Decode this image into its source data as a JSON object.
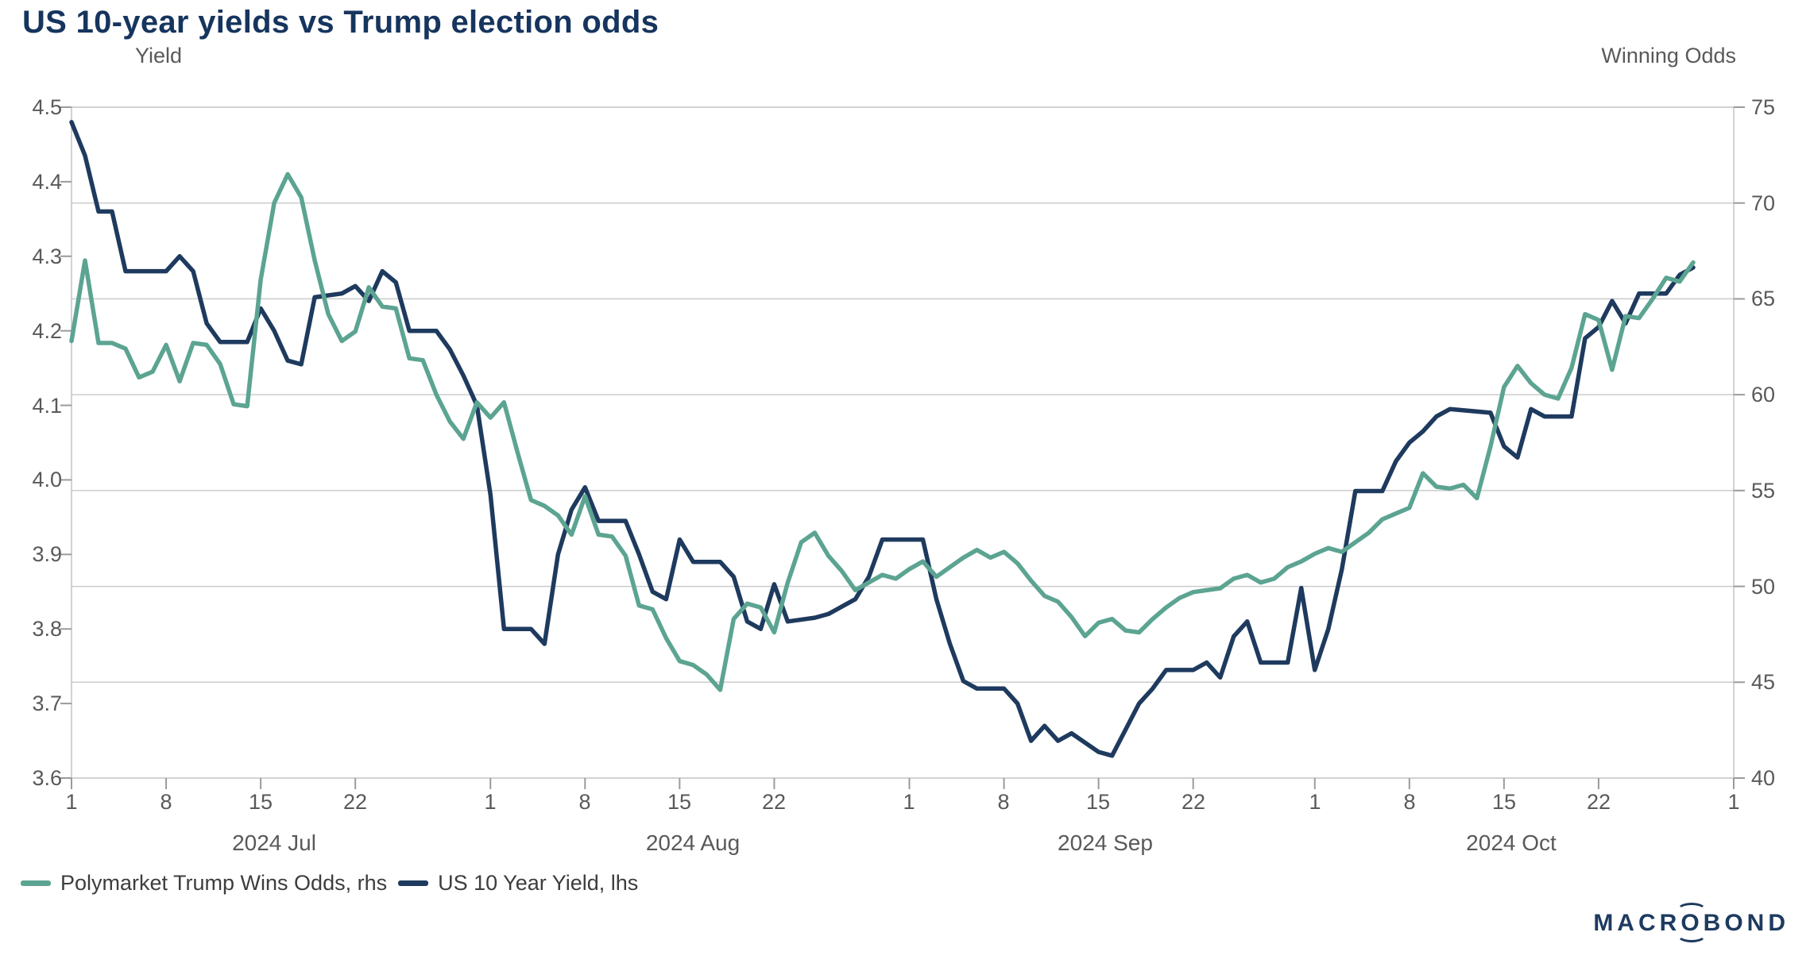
{
  "page": {
    "title": "US 10-year yields vs Trump election odds"
  },
  "colors": {
    "navy": "#1e3a5e",
    "teal": "#5ca492",
    "title_text": "#16355e",
    "axis_text": "#595959",
    "grid": "#cccccc",
    "border": "#c4c4c4",
    "tick": "#9b9b9b",
    "legend_text": "#3d3d3d",
    "logo": "#1e3a5f"
  },
  "legend": {
    "items": [
      {
        "label": "Polymarket Trump Wins Odds, rhs",
        "color": "#5ca492"
      },
      {
        "label": "US 10 Year Yield, lhs",
        "color": "#1e3a5e"
      }
    ]
  },
  "footer": {
    "logo_pre": "MACR",
    "logo_o": "O",
    "logo_post": "BOND"
  },
  "chart_data": {
    "type": "line",
    "title": "US 10-year yields vs Trump election odds",
    "grid": "horizontal-only",
    "legend_position": "bottom-left",
    "x_axis": {
      "unit": "date",
      "start": "2024-07-01",
      "end": "2024-11-01",
      "total_days": 123,
      "tick_days": [
        0,
        7,
        14,
        21,
        31,
        38,
        45,
        52,
        62,
        69,
        76,
        83,
        92,
        99,
        106,
        113,
        123
      ],
      "tick_labels": [
        "1",
        "8",
        "15",
        "22",
        "1",
        "8",
        "15",
        "22",
        "1",
        "8",
        "15",
        "22",
        "1",
        "8",
        "15",
        "22",
        "1"
      ],
      "month_labels": [
        "2024 Jul",
        "2024 Aug",
        "2024 Sep",
        "2024 Oct"
      ]
    },
    "left_axis": {
      "title": "Yield",
      "min": 3.6,
      "max": 4.5,
      "tick_values": [
        4.5,
        4.4,
        4.3,
        4.2,
        4.1,
        4.0,
        3.9,
        3.8,
        3.7,
        3.6
      ],
      "ticks": [
        "4.5",
        "4.4",
        "4.3",
        "4.2",
        "4.1",
        "4.0",
        "3.9",
        "3.8",
        "3.7",
        "3.6"
      ]
    },
    "right_axis": {
      "title": "Winning Odds",
      "min": 40,
      "max": 75,
      "tick_values": [
        75,
        70,
        65,
        60,
        55,
        50,
        45,
        40
      ],
      "grid_values": [
        70,
        65,
        60,
        55,
        50,
        45
      ],
      "ticks": [
        "75",
        "70",
        "65",
        "60",
        "55",
        "50",
        "45",
        "40"
      ]
    },
    "series": [
      {
        "name": "US 10 Year Yield, lhs",
        "axis": "left",
        "color": "#1e3a5e",
        "points": [
          [
            0,
            4.48
          ],
          [
            1,
            4.435
          ],
          [
            2,
            4.36
          ],
          [
            3,
            4.36
          ],
          [
            4,
            4.28
          ],
          [
            7,
            4.28
          ],
          [
            8,
            4.3
          ],
          [
            9,
            4.28
          ],
          [
            10,
            4.21
          ],
          [
            11,
            4.185
          ],
          [
            13,
            4.185
          ],
          [
            14,
            4.23
          ],
          [
            15,
            4.2
          ],
          [
            16,
            4.16
          ],
          [
            17,
            4.155
          ],
          [
            18,
            4.245
          ],
          [
            20,
            4.25
          ],
          [
            21,
            4.26
          ],
          [
            22,
            4.24
          ],
          [
            23,
            4.28
          ],
          [
            24,
            4.265
          ],
          [
            25,
            4.2
          ],
          [
            27,
            4.2
          ],
          [
            28,
            4.175
          ],
          [
            29,
            4.14
          ],
          [
            30,
            4.1
          ],
          [
            31,
            3.98
          ],
          [
            32,
            3.8
          ],
          [
            34,
            3.8
          ],
          [
            35,
            3.78
          ],
          [
            36,
            3.9
          ],
          [
            37,
            3.96
          ],
          [
            38,
            3.99
          ],
          [
            39,
            3.945
          ],
          [
            41,
            3.945
          ],
          [
            42,
            3.9
          ],
          [
            43,
            3.85
          ],
          [
            44,
            3.84
          ],
          [
            45,
            3.92
          ],
          [
            46,
            3.89
          ],
          [
            48,
            3.89
          ],
          [
            49,
            3.87
          ],
          [
            50,
            3.81
          ],
          [
            51,
            3.8
          ],
          [
            52,
            3.86
          ],
          [
            53,
            3.81
          ],
          [
            55,
            3.815
          ],
          [
            56,
            3.82
          ],
          [
            57,
            3.83
          ],
          [
            58,
            3.84
          ],
          [
            59,
            3.87
          ],
          [
            60,
            3.92
          ],
          [
            63,
            3.92
          ],
          [
            64,
            3.84
          ],
          [
            65,
            3.78
          ],
          [
            66,
            3.73
          ],
          [
            67,
            3.72
          ],
          [
            69,
            3.72
          ],
          [
            70,
            3.7
          ],
          [
            71,
            3.65
          ],
          [
            72,
            3.67
          ],
          [
            73,
            3.65
          ],
          [
            74,
            3.66
          ],
          [
            76,
            3.635
          ],
          [
            77,
            3.63
          ],
          [
            78,
            3.665
          ],
          [
            79,
            3.7
          ],
          [
            80,
            3.72
          ],
          [
            81,
            3.745
          ],
          [
            83,
            3.745
          ],
          [
            84,
            3.755
          ],
          [
            85,
            3.735
          ],
          [
            86,
            3.79
          ],
          [
            87,
            3.81
          ],
          [
            88,
            3.755
          ],
          [
            90,
            3.755
          ],
          [
            91,
            3.855
          ],
          [
            92,
            3.745
          ],
          [
            93,
            3.8
          ],
          [
            94,
            3.88
          ],
          [
            95,
            3.985
          ],
          [
            97,
            3.985
          ],
          [
            98,
            4.025
          ],
          [
            99,
            4.05
          ],
          [
            100,
            4.065
          ],
          [
            101,
            4.085
          ],
          [
            102,
            4.095
          ],
          [
            105,
            4.09
          ],
          [
            106,
            4.045
          ],
          [
            107,
            4.03
          ],
          [
            108,
            4.095
          ],
          [
            109,
            4.085
          ],
          [
            111,
            4.085
          ],
          [
            112,
            4.19
          ],
          [
            113,
            4.205
          ],
          [
            114,
            4.24
          ],
          [
            115,
            4.21
          ],
          [
            116,
            4.25
          ],
          [
            118,
            4.25
          ],
          [
            119,
            4.275
          ],
          [
            120,
            4.285
          ]
        ]
      },
      {
        "name": "Polymarket Trump Wins Odds, rhs",
        "axis": "right",
        "color": "#5ca492",
        "points": [
          [
            0,
            62.8
          ],
          [
            1,
            67.0
          ],
          [
            2,
            62.7
          ],
          [
            3,
            62.7
          ],
          [
            4,
            62.4
          ],
          [
            5,
            60.9
          ],
          [
            6,
            61.2
          ],
          [
            7,
            62.6
          ],
          [
            8,
            60.7
          ],
          [
            9,
            62.7
          ],
          [
            10,
            62.6
          ],
          [
            11,
            61.6
          ],
          [
            12,
            59.5
          ],
          [
            13,
            59.4
          ],
          [
            14,
            66.0
          ],
          [
            15,
            70.0
          ],
          [
            16,
            71.5
          ],
          [
            17,
            70.3
          ],
          [
            18,
            67.0
          ],
          [
            19,
            64.2
          ],
          [
            20,
            62.8
          ],
          [
            21,
            63.3
          ],
          [
            22,
            65.6
          ],
          [
            23,
            64.6
          ],
          [
            24,
            64.5
          ],
          [
            25,
            61.9
          ],
          [
            26,
            61.8
          ],
          [
            27,
            60.0
          ],
          [
            28,
            58.6
          ],
          [
            29,
            57.7
          ],
          [
            30,
            59.6
          ],
          [
            31,
            58.8
          ],
          [
            32,
            59.6
          ],
          [
            33,
            57.0
          ],
          [
            34,
            54.5
          ],
          [
            35,
            54.2
          ],
          [
            36,
            53.7
          ],
          [
            37,
            52.7
          ],
          [
            38,
            54.7
          ],
          [
            39,
            52.7
          ],
          [
            40,
            52.6
          ],
          [
            41,
            51.6
          ],
          [
            42,
            49.0
          ],
          [
            43,
            48.8
          ],
          [
            44,
            47.3
          ],
          [
            45,
            46.1
          ],
          [
            46,
            45.9
          ],
          [
            47,
            45.4
          ],
          [
            48,
            44.6
          ],
          [
            49,
            48.3
          ],
          [
            50,
            49.1
          ],
          [
            51,
            48.9
          ],
          [
            52,
            47.6
          ],
          [
            53,
            50.2
          ],
          [
            54,
            52.3
          ],
          [
            55,
            52.8
          ],
          [
            56,
            51.6
          ],
          [
            57,
            50.8
          ],
          [
            58,
            49.8
          ],
          [
            59,
            50.2
          ],
          [
            60,
            50.6
          ],
          [
            61,
            50.4
          ],
          [
            62,
            50.9
          ],
          [
            63,
            51.3
          ],
          [
            64,
            50.5
          ],
          [
            65,
            51.0
          ],
          [
            66,
            51.5
          ],
          [
            67,
            51.9
          ],
          [
            68,
            51.5
          ],
          [
            69,
            51.8
          ],
          [
            70,
            51.2
          ],
          [
            71,
            50.3
          ],
          [
            72,
            49.5
          ],
          [
            73,
            49.2
          ],
          [
            74,
            48.4
          ],
          [
            75,
            47.4
          ],
          [
            76,
            48.1
          ],
          [
            77,
            48.3
          ],
          [
            78,
            47.7
          ],
          [
            79,
            47.6
          ],
          [
            80,
            48.3
          ],
          [
            81,
            48.9
          ],
          [
            82,
            49.4
          ],
          [
            83,
            49.7
          ],
          [
            84,
            49.8
          ],
          [
            85,
            49.9
          ],
          [
            86,
            50.4
          ],
          [
            87,
            50.6
          ],
          [
            88,
            50.2
          ],
          [
            89,
            50.4
          ],
          [
            90,
            51.0
          ],
          [
            91,
            51.3
          ],
          [
            92,
            51.7
          ],
          [
            93,
            52.0
          ],
          [
            94,
            51.8
          ],
          [
            95,
            52.3
          ],
          [
            96,
            52.8
          ],
          [
            97,
            53.5
          ],
          [
            98,
            53.8
          ],
          [
            99,
            54.1
          ],
          [
            100,
            55.9
          ],
          [
            101,
            55.2
          ],
          [
            102,
            55.1
          ],
          [
            103,
            55.3
          ],
          [
            104,
            54.6
          ],
          [
            105,
            57.3
          ],
          [
            106,
            60.4
          ],
          [
            107,
            61.5
          ],
          [
            108,
            60.6
          ],
          [
            109,
            60.0
          ],
          [
            110,
            59.8
          ],
          [
            111,
            61.4
          ],
          [
            112,
            64.2
          ],
          [
            113,
            63.9
          ],
          [
            114,
            61.3
          ],
          [
            115,
            64.1
          ],
          [
            116,
            64.0
          ],
          [
            117,
            65.0
          ],
          [
            118,
            66.1
          ],
          [
            119,
            65.9
          ],
          [
            120,
            66.9
          ]
        ]
      }
    ]
  }
}
